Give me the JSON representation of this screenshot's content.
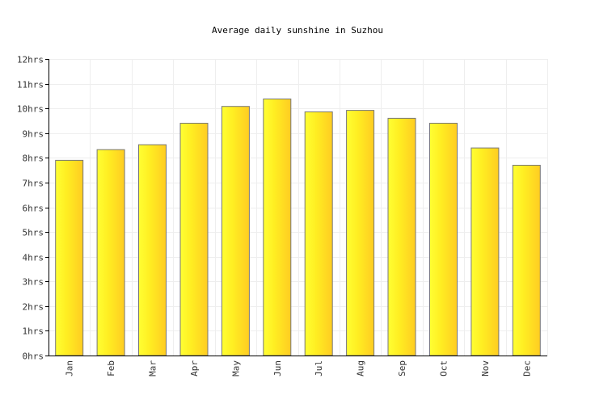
{
  "chart_data": {
    "type": "bar",
    "title": "Average daily sunshine in Suzhou",
    "xlabel": "",
    "ylabel": "",
    "categories": [
      "Jan",
      "Feb",
      "Mar",
      "Apr",
      "May",
      "Jun",
      "Jul",
      "Aug",
      "Sep",
      "Oct",
      "Nov",
      "Dec"
    ],
    "values": [
      7.9,
      8.33,
      8.53,
      9.4,
      10.08,
      10.38,
      9.86,
      9.92,
      9.6,
      9.4,
      8.4,
      7.7
    ],
    "unit": "hrs",
    "ylim": [
      0,
      12
    ],
    "yticks": [
      0,
      1,
      2,
      3,
      4,
      5,
      6,
      7,
      8,
      9,
      10,
      11,
      12
    ],
    "ytick_labels": [
      "0hrs",
      "1hrs",
      "2hrs",
      "3hrs",
      "4hrs",
      "5hrs",
      "6hrs",
      "7hrs",
      "8hrs",
      "9hrs",
      "10hrs",
      "11hrs",
      "12hrs"
    ],
    "grid": true,
    "legend": "none",
    "colors": {
      "bar_edge_light": "#ffff33",
      "bar_center": "#ffee22",
      "bar_edge_dark": "#ffcc22",
      "bar_stroke": "#777777",
      "grid": "#eeeeee",
      "axis": "#000000"
    }
  }
}
